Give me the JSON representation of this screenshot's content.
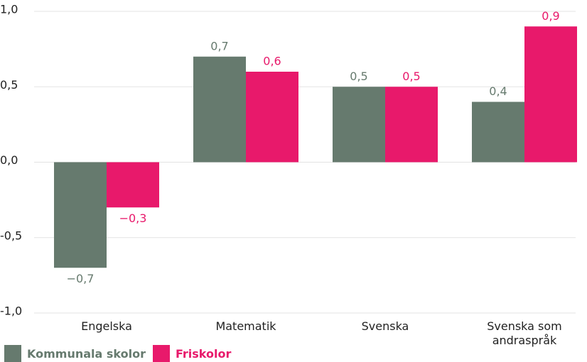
{
  "chart_data": {
    "type": "bar",
    "categories": [
      "Engelska",
      "Matematik",
      "Svenska",
      "Svenska som andraspråk"
    ],
    "series": [
      {
        "name": "Kommunala skolor",
        "color": "#667a6e",
        "values": [
          -0.7,
          0.7,
          0.5,
          0.4
        ],
        "value_labels": [
          "−0,7",
          "0,7",
          "0,5",
          "0,4"
        ]
      },
      {
        "name": "Friskolor",
        "color": "#e8196b",
        "values": [
          -0.3,
          0.6,
          0.5,
          0.9
        ],
        "value_labels": [
          "−0,3",
          "0,6",
          "0,5",
          "0,9"
        ]
      }
    ],
    "ylim": [
      -1.0,
      1.0
    ],
    "yticks": [
      {
        "value": -1.0,
        "label": "-1,0"
      },
      {
        "value": -0.5,
        "label": "-0,5"
      },
      {
        "value": 0,
        "label": "0,0"
      },
      {
        "value": 0.5,
        "label": "0,5"
      },
      {
        "value": 1.0,
        "label": "1,0"
      }
    ],
    "grid": true
  }
}
